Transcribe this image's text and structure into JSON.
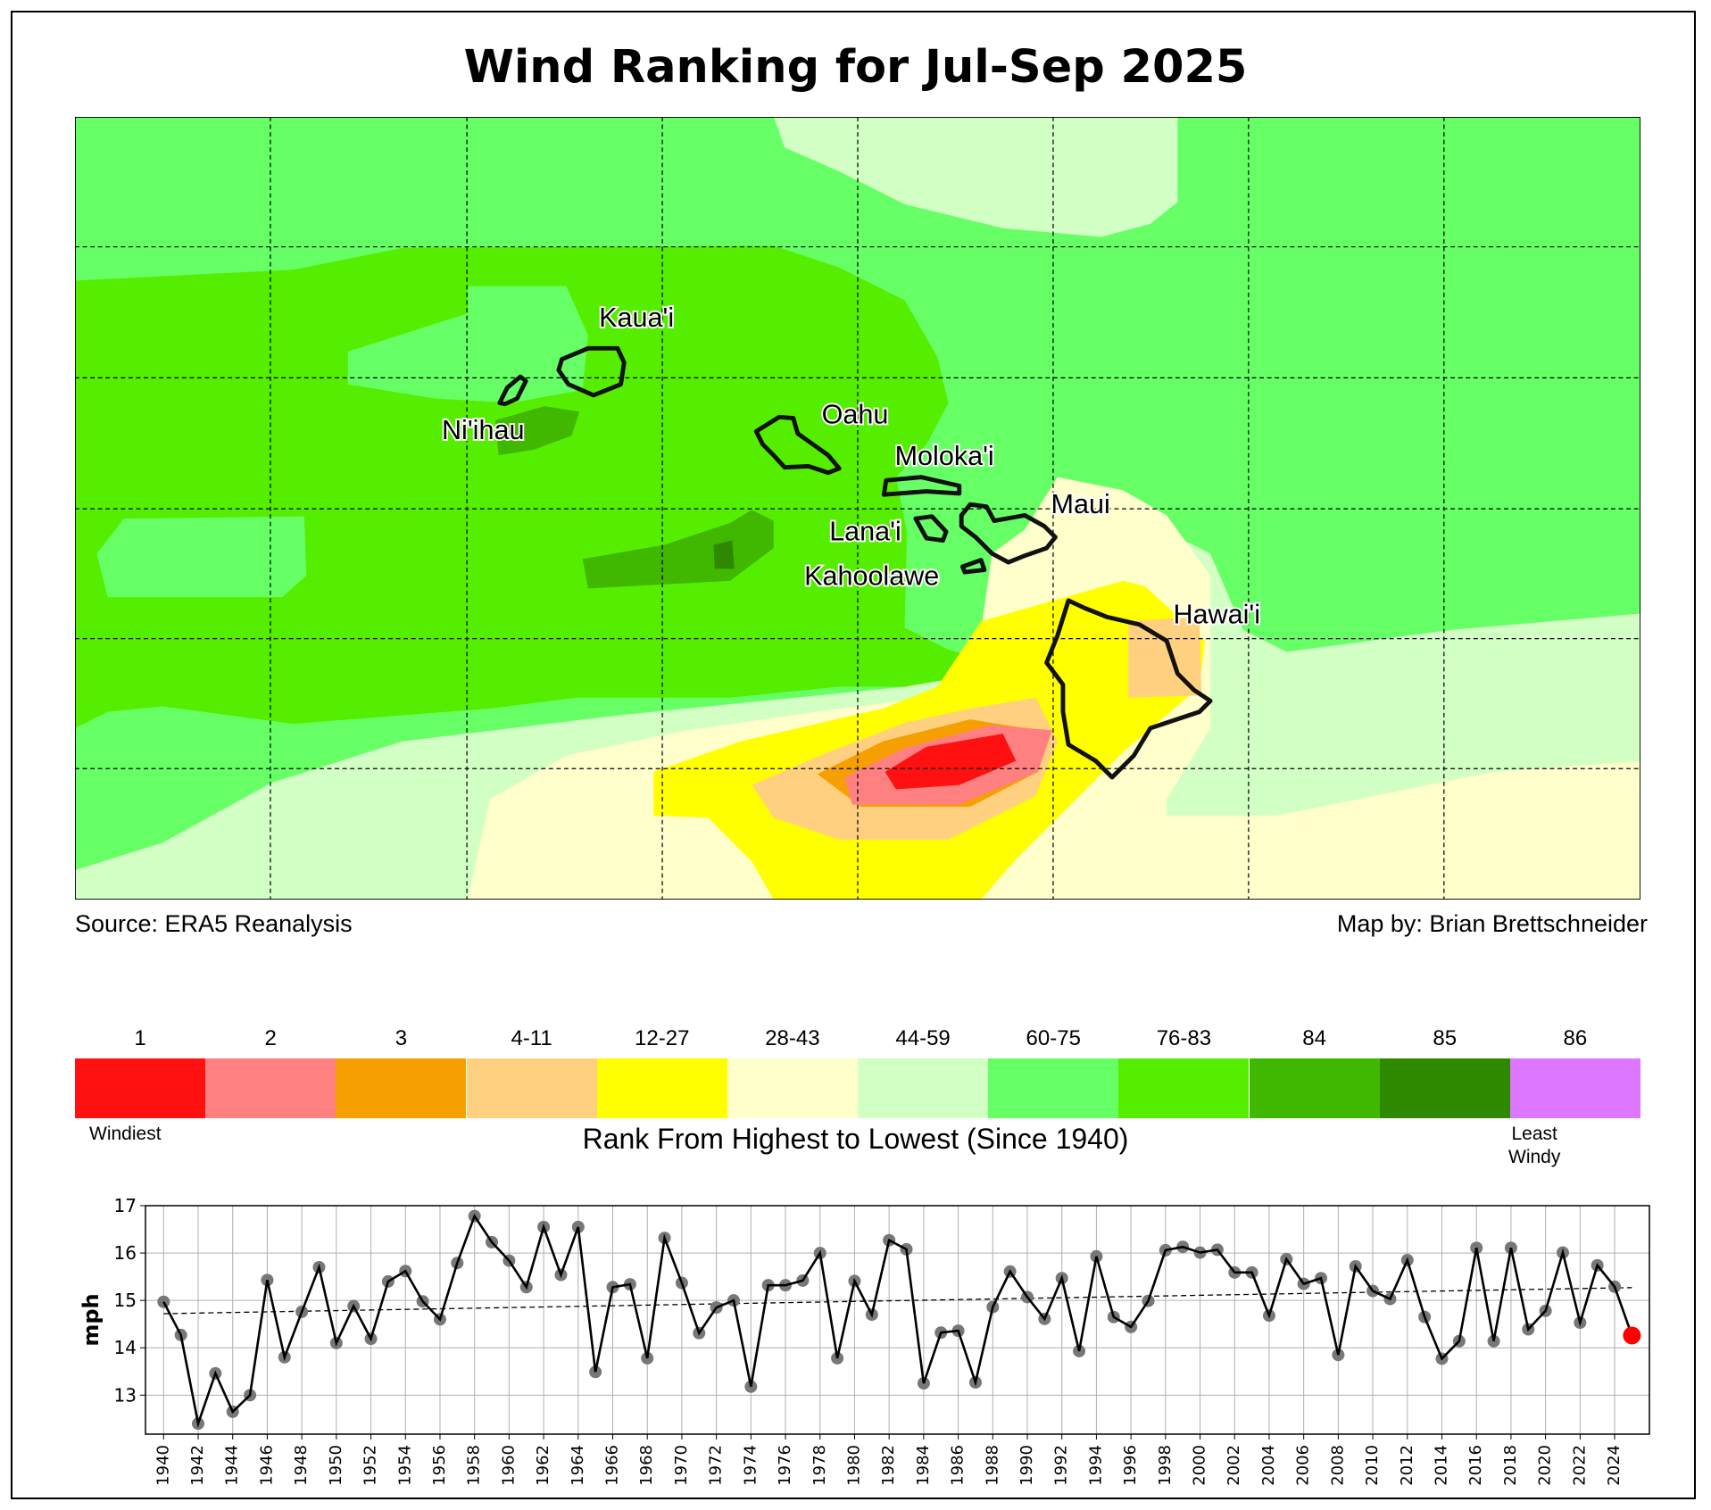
{
  "title": "Wind Ranking for Jul-Sep 2025",
  "map": {
    "labels": {
      "kauai": "Kaua'i",
      "niihau": "Ni'ihau",
      "oahu": "Oahu",
      "molokai": "Moloka'i",
      "maui": "Maui",
      "lanai": "Lana'i",
      "kahoolawe": "Kahoolawe",
      "hawaii": "Hawai'i"
    },
    "source": "Source: ERA5 Reanalysis",
    "credit": "Map by: Brian Brettschneider"
  },
  "legend": {
    "bins": [
      {
        "label": "1",
        "color": "#ff1111"
      },
      {
        "label": "2",
        "color": "#ff8080"
      },
      {
        "label": "3",
        "color": "#f5a000"
      },
      {
        "label": "4-11",
        "color": "#ffd080"
      },
      {
        "label": "12-27",
        "color": "#ffff00"
      },
      {
        "label": "28-43",
        "color": "#ffffcc"
      },
      {
        "label": "44-59",
        "color": "#d2ffc4"
      },
      {
        "label": "60-75",
        "color": "#66ff66"
      },
      {
        "label": "76-83",
        "color": "#55ee00"
      },
      {
        "label": "84",
        "color": "#40b800"
      },
      {
        "label": "85",
        "color": "#2e8800"
      },
      {
        "label": "86",
        "color": "#dd77ff"
      }
    ],
    "low_label": "Windiest",
    "high_label_1": "Least",
    "high_label_2": "Windy",
    "title": "Rank From Highest to Lowest (Since 1940)"
  },
  "chart_data": {
    "type": "line",
    "title": "",
    "xlabel": "",
    "ylabel": "mph",
    "ylim": [
      12.2,
      17
    ],
    "yticks": [
      13,
      14,
      15,
      16,
      17
    ],
    "xlim": [
      1939,
      2026
    ],
    "grid": true,
    "x": [
      1940,
      1941,
      1942,
      1943,
      1944,
      1945,
      1946,
      1947,
      1948,
      1949,
      1950,
      1951,
      1952,
      1953,
      1954,
      1955,
      1956,
      1957,
      1958,
      1959,
      1960,
      1961,
      1962,
      1963,
      1964,
      1965,
      1966,
      1967,
      1968,
      1969,
      1970,
      1971,
      1972,
      1973,
      1974,
      1975,
      1976,
      1977,
      1978,
      1979,
      1980,
      1981,
      1982,
      1983,
      1984,
      1985,
      1986,
      1987,
      1988,
      1989,
      1990,
      1991,
      1992,
      1993,
      1994,
      1995,
      1996,
      1997,
      1998,
      1999,
      2000,
      2001,
      2002,
      2003,
      2004,
      2005,
      2006,
      2007,
      2008,
      2009,
      2010,
      2011,
      2012,
      2013,
      2014,
      2015,
      2016,
      2017,
      2018,
      2019,
      2020,
      2021,
      2022,
      2023,
      2024,
      2025
    ],
    "values": [
      14.97,
      14.27,
      12.4,
      13.46,
      12.65,
      13.0,
      15.43,
      13.8,
      14.76,
      15.7,
      14.1,
      14.88,
      14.19,
      15.4,
      15.62,
      14.98,
      14.6,
      15.79,
      16.78,
      16.23,
      15.84,
      15.28,
      16.55,
      15.54,
      16.55,
      13.49,
      15.28,
      15.34,
      13.78,
      16.32,
      15.37,
      14.31,
      14.85,
      15.0,
      13.18,
      15.32,
      15.32,
      15.42,
      16.0,
      13.78,
      15.41,
      14.7,
      16.27,
      16.08,
      13.25,
      14.32,
      14.36,
      13.27,
      14.86,
      15.61,
      15.07,
      14.61,
      15.47,
      13.93,
      15.93,
      14.65,
      14.44,
      14.99,
      16.06,
      16.13,
      16.01,
      16.07,
      15.59,
      15.59,
      14.68,
      15.87,
      15.35,
      15.47,
      13.85,
      15.72,
      15.2,
      15.03,
      15.85,
      14.65,
      13.77,
      14.14,
      16.11,
      14.14,
      16.11,
      14.39,
      14.78,
      16.01,
      14.53,
      15.74,
      15.29,
      14.26
    ],
    "trend": {
      "x": [
        1940,
        2025
      ],
      "y": [
        14.72,
        15.27
      ]
    },
    "highlight": {
      "year": 2025,
      "color": "#ff0000"
    },
    "xticks": [
      1940,
      1942,
      1944,
      1946,
      1948,
      1950,
      1952,
      1954,
      1956,
      1958,
      1960,
      1962,
      1964,
      1966,
      1968,
      1970,
      1972,
      1974,
      1976,
      1978,
      1980,
      1982,
      1984,
      1986,
      1988,
      1990,
      1992,
      1994,
      1996,
      1998,
      2000,
      2002,
      2004,
      2006,
      2008,
      2010,
      2012,
      2014,
      2016,
      2018,
      2020,
      2022,
      2024
    ]
  }
}
